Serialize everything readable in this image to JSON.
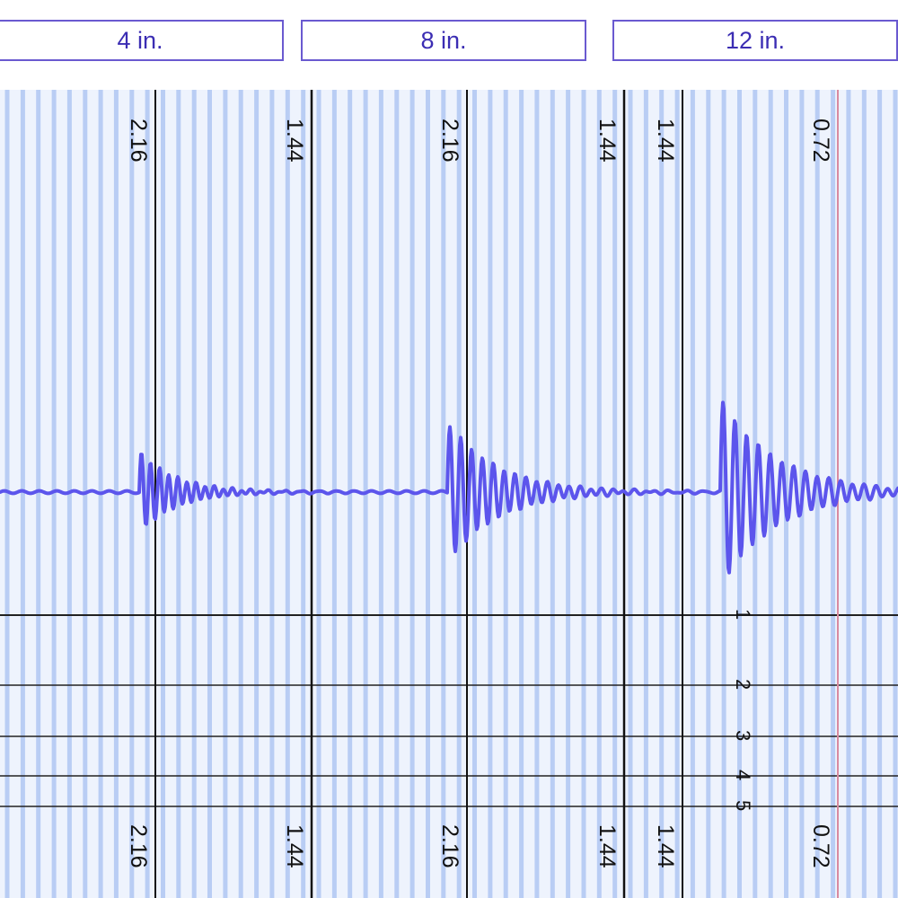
{
  "tabs": [
    {
      "label": "4 in."
    },
    {
      "label": "8 in."
    },
    {
      "label": "12 in."
    }
  ],
  "strip": {
    "top_labels": [
      "2.16",
      "1.44",
      "2.16",
      "1.44",
      "1.44",
      "0.72"
    ],
    "bottom_labels": [
      "2.16",
      "1.44",
      "2.16",
      "1.44",
      "1.44",
      "0.72"
    ],
    "row_labels": [
      "1",
      "2",
      "3",
      "4",
      "5"
    ]
  },
  "colors": {
    "accent": "#3b2db3",
    "trace": "#5c55ec",
    "grid_light": "#b9cdf4",
    "background": "#eef3fd",
    "red_marker": "#d98aa0"
  }
}
